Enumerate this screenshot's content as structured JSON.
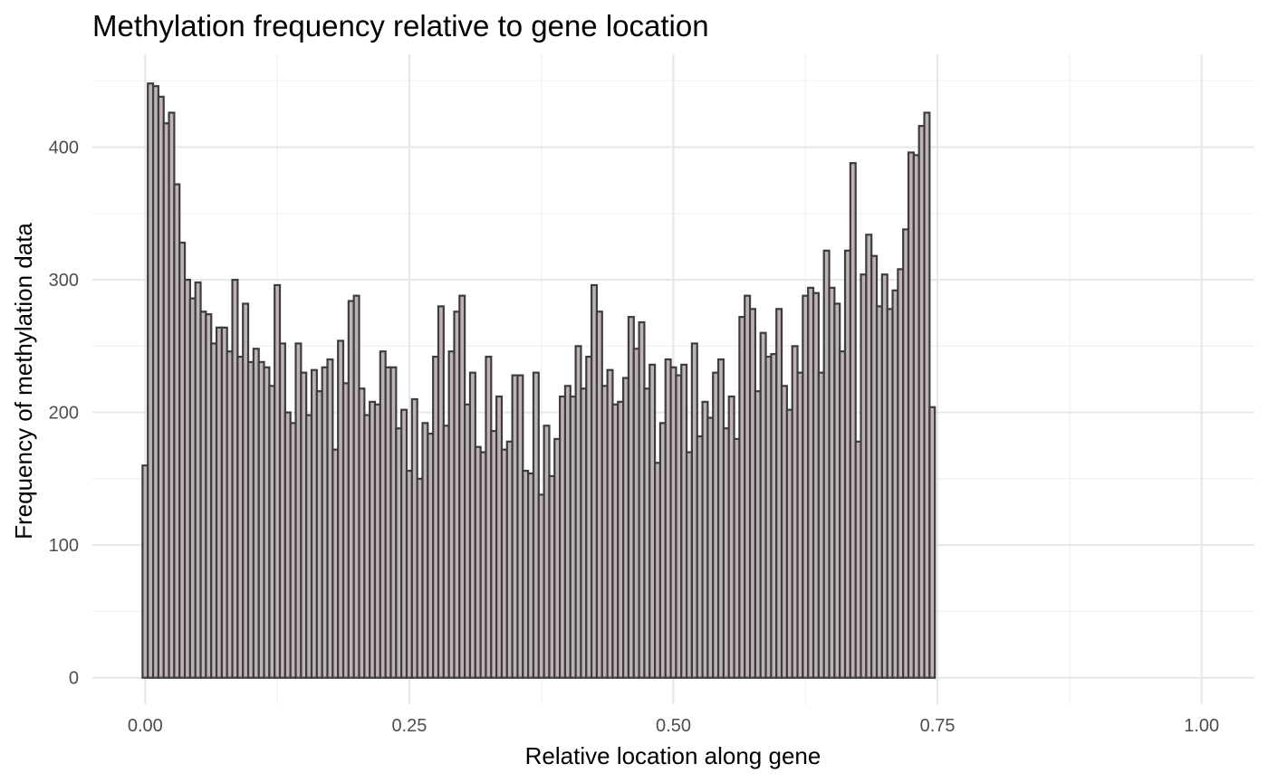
{
  "chart_data": {
    "type": "bar",
    "title": "Methylation frequency relative to gene location",
    "xlabel": "Relative location along gene",
    "ylabel": "Frequency of methylation data",
    "xlim": [
      -0.05,
      1.05
    ],
    "ylim": [
      -20,
      470
    ],
    "x_ticks": [
      0,
      0.25,
      0.5,
      0.75,
      1
    ],
    "x_tick_labels": [
      "0.00",
      "0.25",
      "0.50",
      "0.75",
      "1.00"
    ],
    "y_ticks": [
      0,
      100,
      200,
      300,
      400
    ],
    "y_tick_labels": [
      "0",
      "100",
      "200",
      "300",
      "400"
    ],
    "grid": true,
    "bin_width": 0.005,
    "x_start": 0,
    "values": [
      160,
      448,
      446,
      438,
      418,
      426,
      372,
      328,
      300,
      286,
      298,
      276,
      274,
      252,
      264,
      264,
      246,
      300,
      242,
      282,
      238,
      248,
      238,
      234,
      220,
      296,
      252,
      200,
      192,
      252,
      230,
      198,
      232,
      216,
      234,
      240,
      172,
      254,
      222,
      284,
      288,
      218,
      198,
      208,
      206,
      246,
      234,
      234,
      188,
      202,
      156,
      210,
      150,
      192,
      184,
      242,
      280,
      190,
      246,
      276,
      288,
      206,
      230,
      174,
      170,
      242,
      186,
      212,
      172,
      178,
      228,
      228,
      156,
      154,
      230,
      138,
      190,
      152,
      180,
      212,
      220,
      212,
      250,
      218,
      242,
      296,
      276,
      220,
      232,
      206,
      208,
      226,
      272,
      248,
      268,
      218,
      236,
      162,
      192,
      240,
      234,
      228,
      236,
      170,
      252,
      182,
      208,
      196,
      230,
      240,
      188,
      212,
      180,
      272,
      288,
      278,
      216,
      260,
      242,
      244,
      278,
      220,
      202,
      250,
      230,
      288,
      294,
      290,
      230,
      322,
      294,
      282,
      246,
      322,
      388,
      178,
      304,
      334,
      318,
      280,
      304,
      278,
      292,
      308,
      338,
      396,
      394,
      416,
      426,
      204
    ],
    "fill_color": "#bfb2b4",
    "edge_color": "#3d3d3d"
  }
}
